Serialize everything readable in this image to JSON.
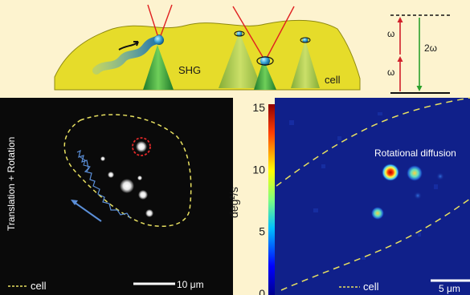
{
  "schematic": {
    "shg_label": "SHG",
    "cell_label": "cell"
  },
  "energy_diagram": {
    "omega_upper": "ω",
    "omega_lower": "ω",
    "two_omega": "2ω",
    "colors": {
      "excitation": "#d0202a",
      "emission": "#2aa02a"
    }
  },
  "left_panel": {
    "vertical_label": "Translation + Rotation",
    "legend_label": "cell",
    "scalebar_label": "10 μm",
    "colors": {
      "outline": "#e8e060",
      "trajectory": "#5b8fd8",
      "highlight": "#e02828"
    }
  },
  "right_panel": {
    "ylabel": "deg²/s",
    "colorbar_ticks": [
      "0",
      "5",
      "10",
      "15"
    ],
    "colorbar_range": [
      0,
      15
    ],
    "title": "Rotational diffusion",
    "legend_label": "cell",
    "scalebar_label": "5 μm",
    "colors": {
      "background": "#10208a",
      "outline": "#e8e060"
    }
  }
}
